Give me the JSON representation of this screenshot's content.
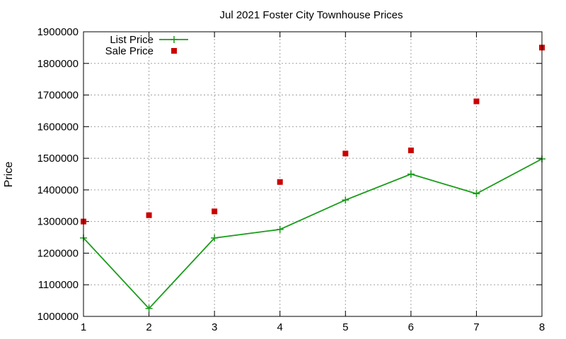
{
  "chart_data": {
    "type": "line",
    "title": "Jul 2021 Foster City Townhouse Prices",
    "xlabel": "",
    "ylabel": "Price",
    "xlim": [
      1,
      8
    ],
    "ylim": [
      1000000,
      1900000
    ],
    "x_ticks": [
      1,
      2,
      3,
      4,
      5,
      6,
      7,
      8
    ],
    "y_ticks": [
      1000000,
      1100000,
      1200000,
      1300000,
      1400000,
      1500000,
      1600000,
      1700000,
      1800000,
      1900000
    ],
    "grid": true,
    "legend_position": "top-left",
    "series": [
      {
        "name": "List Price",
        "kind": "line",
        "marker": "plus",
        "color": "#1a9c1a",
        "x": [
          1,
          2,
          3,
          4,
          5,
          6,
          7,
          8
        ],
        "y": [
          1248000,
          1025000,
          1248000,
          1275000,
          1368000,
          1450000,
          1388000,
          1498000
        ]
      },
      {
        "name": "Sale Price",
        "kind": "scatter",
        "marker": "square",
        "color": "#cc0000",
        "x": [
          1,
          2,
          3,
          4,
          5,
          6,
          7,
          8
        ],
        "y": [
          1300000,
          1320000,
          1332000,
          1425000,
          1515000,
          1525000,
          1680000,
          1850000
        ]
      }
    ]
  }
}
